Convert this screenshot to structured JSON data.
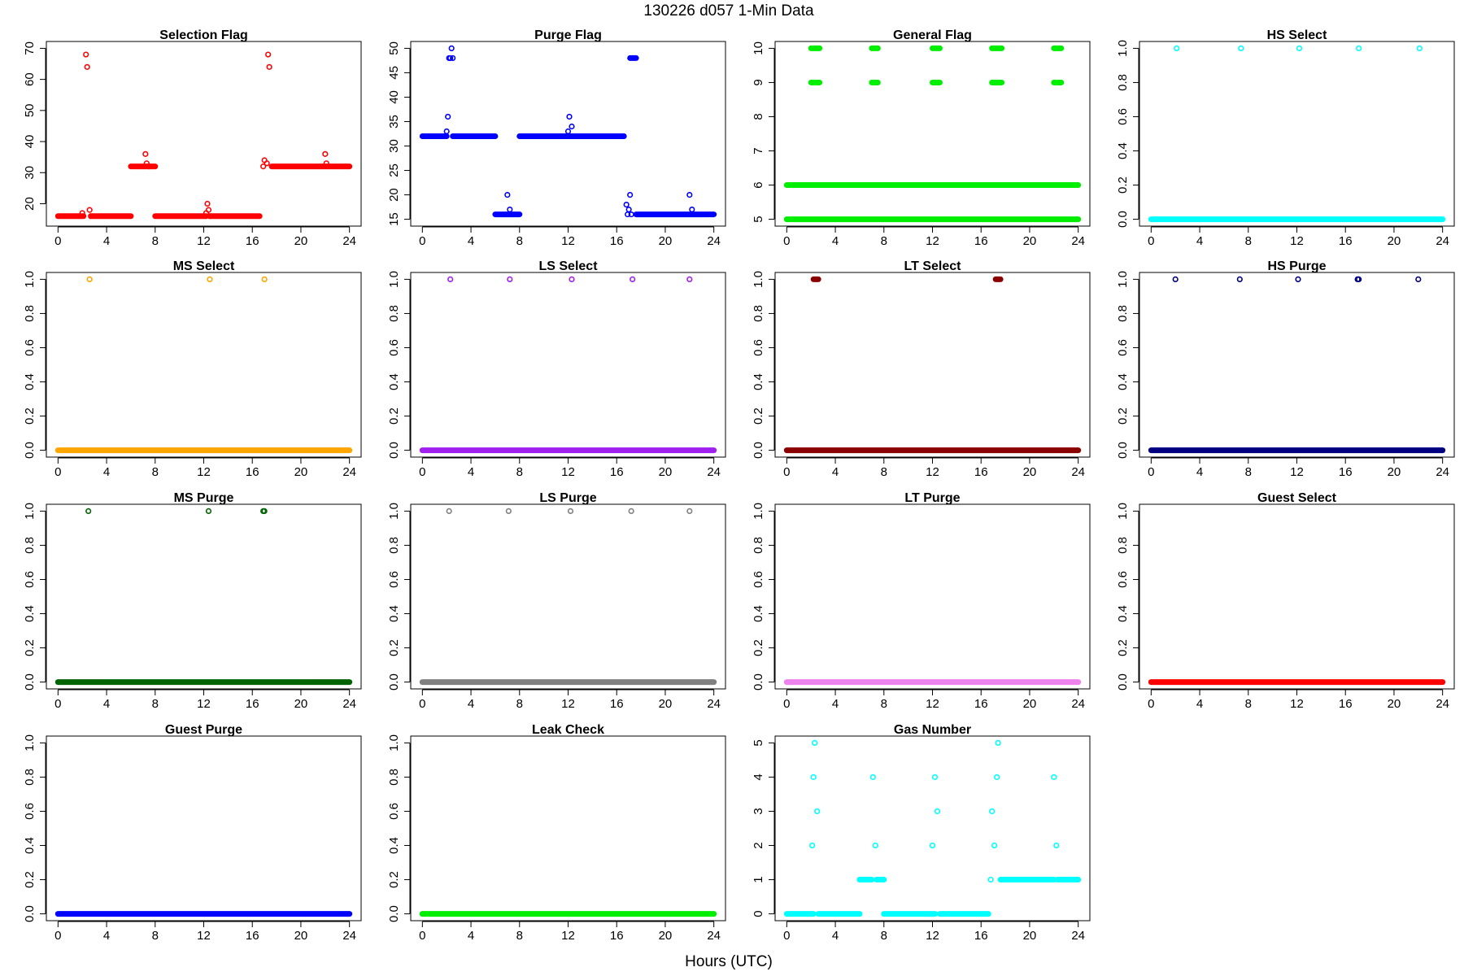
{
  "figure": {
    "title": "130226   d057   1-Min Data",
    "xlabel": "Hours (UTC)"
  },
  "chart_data": [
    {
      "type": "scatter",
      "title": "Selection Flag",
      "color": "#ff0000",
      "xlim": [
        0,
        24
      ],
      "ylim": [
        15,
        70
      ],
      "xticks": [
        0,
        4,
        8,
        12,
        16,
        20,
        24
      ],
      "yticks": [
        20,
        30,
        40,
        50,
        60,
        70
      ],
      "runs": [
        [
          0,
          2.1,
          16
        ],
        [
          2.8,
          6.0,
          16
        ],
        [
          6.0,
          8.0,
          32
        ],
        [
          8.0,
          12.2,
          16
        ],
        [
          12.6,
          16.6,
          16
        ],
        [
          17.6,
          24,
          32
        ]
      ],
      "points": [
        [
          2.0,
          17
        ],
        [
          2.3,
          68
        ],
        [
          2.4,
          64
        ],
        [
          2.6,
          18
        ],
        [
          2.7,
          16
        ],
        [
          7.2,
          36
        ],
        [
          7.3,
          33
        ],
        [
          7.5,
          32
        ],
        [
          12.2,
          17
        ],
        [
          12.3,
          20
        ],
        [
          12.4,
          18
        ],
        [
          12.5,
          16
        ],
        [
          16.9,
          32
        ],
        [
          17.0,
          34
        ],
        [
          17.2,
          33
        ],
        [
          17.3,
          68
        ],
        [
          17.4,
          64
        ],
        [
          22.0,
          36
        ],
        [
          22.1,
          33
        ]
      ]
    },
    {
      "type": "scatter",
      "title": "Purge Flag",
      "color": "#0000ff",
      "xlim": [
        0,
        24
      ],
      "ylim": [
        15,
        50
      ],
      "xticks": [
        0,
        4,
        8,
        12,
        16,
        20,
        24
      ],
      "yticks": [
        15,
        20,
        25,
        30,
        35,
        40,
        45,
        50
      ],
      "runs": [
        [
          0,
          2.0,
          32
        ],
        [
          2.5,
          6.0,
          32
        ],
        [
          6.0,
          8.0,
          16
        ],
        [
          8.0,
          16.6,
          32
        ],
        [
          17.1,
          17.6,
          48
        ],
        [
          17.6,
          24,
          16
        ]
      ],
      "points": [
        [
          2.0,
          33
        ],
        [
          2.1,
          36
        ],
        [
          2.2,
          48
        ],
        [
          2.3,
          48
        ],
        [
          2.4,
          50
        ],
        [
          2.5,
          48
        ],
        [
          7.0,
          20
        ],
        [
          7.2,
          17
        ],
        [
          12.0,
          33
        ],
        [
          12.1,
          36
        ],
        [
          12.3,
          34
        ],
        [
          16.8,
          18
        ],
        [
          16.9,
          16
        ],
        [
          17.0,
          17
        ],
        [
          17.1,
          20
        ],
        [
          17.2,
          16
        ],
        [
          22.0,
          20
        ],
        [
          22.2,
          17
        ]
      ]
    },
    {
      "type": "scatter",
      "title": "General Flag",
      "color": "#00ee00",
      "xlim": [
        0,
        24
      ],
      "ylim": [
        5,
        10
      ],
      "xticks": [
        0,
        4,
        8,
        12,
        16,
        20,
        24
      ],
      "yticks": [
        5,
        6,
        7,
        8,
        9,
        10
      ],
      "runs": [
        [
          0,
          24,
          5
        ],
        [
          0,
          24,
          6
        ],
        [
          2.0,
          2.7,
          10
        ],
        [
          2.0,
          2.7,
          9
        ],
        [
          7.0,
          7.5,
          10
        ],
        [
          7.0,
          7.5,
          9
        ],
        [
          12.0,
          12.6,
          10
        ],
        [
          12.0,
          12.6,
          9
        ],
        [
          16.9,
          17.7,
          10
        ],
        [
          16.9,
          17.7,
          9
        ],
        [
          22.0,
          22.6,
          10
        ],
        [
          22.0,
          22.6,
          9
        ]
      ],
      "points": []
    },
    {
      "type": "scatter",
      "title": "HS Select",
      "color": "#00ffff",
      "xlim": [
        0,
        24
      ],
      "ylim": [
        0,
        1
      ],
      "xticks": [
        0,
        4,
        8,
        12,
        16,
        20,
        24
      ],
      "yticks": [
        0.0,
        0.2,
        0.4,
        0.6,
        0.8,
        1.0
      ],
      "runs": [
        [
          0,
          24,
          0
        ]
      ],
      "points": [
        [
          2.1,
          1
        ],
        [
          7.4,
          1
        ],
        [
          12.2,
          1
        ],
        [
          17.1,
          1
        ],
        [
          22.1,
          1
        ]
      ]
    },
    {
      "type": "scatter",
      "title": "MS Select",
      "color": "#ffa500",
      "xlim": [
        0,
        24
      ],
      "ylim": [
        0,
        1
      ],
      "xticks": [
        0,
        4,
        8,
        12,
        16,
        20,
        24
      ],
      "yticks": [
        0.0,
        0.2,
        0.4,
        0.6,
        0.8,
        1.0
      ],
      "runs": [
        [
          0,
          24,
          0
        ]
      ],
      "points": [
        [
          2.6,
          1
        ],
        [
          12.5,
          1
        ],
        [
          17.0,
          1
        ]
      ]
    },
    {
      "type": "scatter",
      "title": "LS Select",
      "color": "#a020f0",
      "xlim": [
        0,
        24
      ],
      "ylim": [
        0,
        1
      ],
      "xticks": [
        0,
        4,
        8,
        12,
        16,
        20,
        24
      ],
      "yticks": [
        0.0,
        0.2,
        0.4,
        0.6,
        0.8,
        1.0
      ],
      "runs": [
        [
          0,
          24,
          0
        ]
      ],
      "points": [
        [
          2.3,
          1
        ],
        [
          7.2,
          1
        ],
        [
          12.3,
          1
        ],
        [
          17.3,
          1
        ],
        [
          22.0,
          1
        ]
      ]
    },
    {
      "type": "scatter",
      "title": "LT Select",
      "color": "#8b0000",
      "xlim": [
        0,
        24
      ],
      "ylim": [
        0,
        1
      ],
      "xticks": [
        0,
        4,
        8,
        12,
        16,
        20,
        24
      ],
      "yticks": [
        0.0,
        0.2,
        0.4,
        0.6,
        0.8,
        1.0
      ],
      "runs": [
        [
          0,
          24,
          0
        ],
        [
          2.2,
          2.6,
          1
        ],
        [
          17.2,
          17.6,
          1
        ]
      ],
      "points": []
    },
    {
      "type": "scatter",
      "title": "HS Purge",
      "color": "#000080",
      "xlim": [
        0,
        24
      ],
      "ylim": [
        0,
        1
      ],
      "xticks": [
        0,
        4,
        8,
        12,
        16,
        20,
        24
      ],
      "yticks": [
        0.0,
        0.2,
        0.4,
        0.6,
        0.8,
        1.0
      ],
      "runs": [
        [
          0,
          24,
          0
        ]
      ],
      "points": [
        [
          2.0,
          1
        ],
        [
          7.3,
          1
        ],
        [
          12.1,
          1
        ],
        [
          17.0,
          1
        ],
        [
          17.1,
          1
        ],
        [
          22.0,
          1
        ]
      ]
    },
    {
      "type": "scatter",
      "title": "MS Purge",
      "color": "#006400",
      "xlim": [
        0,
        24
      ],
      "ylim": [
        0,
        1
      ],
      "xticks": [
        0,
        4,
        8,
        12,
        16,
        20,
        24
      ],
      "yticks": [
        0.0,
        0.2,
        0.4,
        0.6,
        0.8,
        1.0
      ],
      "runs": [
        [
          0,
          24,
          0
        ]
      ],
      "points": [
        [
          2.5,
          1
        ],
        [
          12.4,
          1
        ],
        [
          16.9,
          1
        ],
        [
          17.0,
          1
        ]
      ]
    },
    {
      "type": "scatter",
      "title": "LS Purge",
      "color": "#808080",
      "xlim": [
        0,
        24
      ],
      "ylim": [
        0,
        1
      ],
      "xticks": [
        0,
        4,
        8,
        12,
        16,
        20,
        24
      ],
      "yticks": [
        0.0,
        0.2,
        0.4,
        0.6,
        0.8,
        1.0
      ],
      "runs": [
        [
          0,
          24,
          0
        ]
      ],
      "points": [
        [
          2.2,
          1
        ],
        [
          7.1,
          1
        ],
        [
          12.2,
          1
        ],
        [
          17.2,
          1
        ],
        [
          22.0,
          1
        ]
      ]
    },
    {
      "type": "scatter",
      "title": "LT Purge",
      "color": "#ee82ee",
      "xlim": [
        0,
        24
      ],
      "ylim": [
        0,
        1
      ],
      "xticks": [
        0,
        4,
        8,
        12,
        16,
        20,
        24
      ],
      "yticks": [
        0.0,
        0.2,
        0.4,
        0.6,
        0.8,
        1.0
      ],
      "runs": [
        [
          0,
          24,
          0
        ]
      ],
      "points": []
    },
    {
      "type": "scatter",
      "title": "Guest Select",
      "color": "#ff0000",
      "xlim": [
        0,
        24
      ],
      "ylim": [
        0,
        1
      ],
      "xticks": [
        0,
        4,
        8,
        12,
        16,
        20,
        24
      ],
      "yticks": [
        0.0,
        0.2,
        0.4,
        0.6,
        0.8,
        1.0
      ],
      "runs": [
        [
          0,
          24,
          0
        ]
      ],
      "points": []
    },
    {
      "type": "scatter",
      "title": "Guest Purge",
      "color": "#0000ff",
      "xlim": [
        0,
        24
      ],
      "ylim": [
        0,
        1
      ],
      "xticks": [
        0,
        4,
        8,
        12,
        16,
        20,
        24
      ],
      "yticks": [
        0.0,
        0.2,
        0.4,
        0.6,
        0.8,
        1.0
      ],
      "runs": [
        [
          0,
          24,
          0
        ]
      ],
      "points": []
    },
    {
      "type": "scatter",
      "title": "Leak Check",
      "color": "#00ee00",
      "xlim": [
        0,
        24
      ],
      "ylim": [
        0,
        1
      ],
      "xticks": [
        0,
        4,
        8,
        12,
        16,
        20,
        24
      ],
      "yticks": [
        0.0,
        0.2,
        0.4,
        0.6,
        0.8,
        1.0
      ],
      "runs": [
        [
          0,
          24,
          0
        ]
      ],
      "points": []
    },
    {
      "type": "scatter",
      "title": "Gas Number",
      "color": "#00ffff",
      "xlim": [
        0,
        24
      ],
      "ylim": [
        0,
        5
      ],
      "xticks": [
        0,
        4,
        8,
        12,
        16,
        20,
        24
      ],
      "yticks": [
        0,
        1,
        2,
        3,
        4,
        5
      ],
      "runs": [
        [
          0,
          2.2,
          0
        ],
        [
          2.6,
          6.0,
          0
        ],
        [
          6.0,
          7.0,
          1
        ],
        [
          7.4,
          8.0,
          1
        ],
        [
          8.0,
          12.2,
          0
        ],
        [
          12.6,
          16.6,
          0
        ],
        [
          17.6,
          22.0,
          1
        ],
        [
          22.3,
          24,
          1
        ]
      ],
      "points": [
        [
          2.1,
          2
        ],
        [
          2.2,
          4
        ],
        [
          2.3,
          5
        ],
        [
          2.5,
          3
        ],
        [
          7.1,
          4
        ],
        [
          7.3,
          2
        ],
        [
          12.0,
          2
        ],
        [
          12.2,
          4
        ],
        [
          12.4,
          3
        ],
        [
          16.8,
          1
        ],
        [
          16.9,
          3
        ],
        [
          17.1,
          2
        ],
        [
          17.3,
          4
        ],
        [
          17.4,
          5
        ],
        [
          22.0,
          4
        ],
        [
          22.2,
          2
        ]
      ]
    }
  ]
}
